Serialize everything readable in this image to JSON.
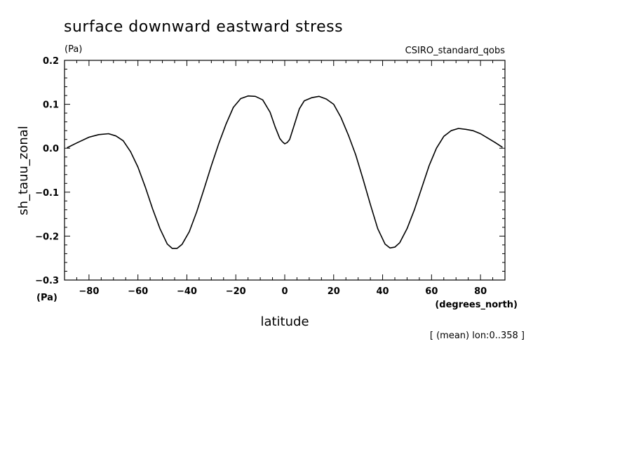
{
  "chart_data": {
    "type": "line",
    "title": "surface downward eastward stress",
    "units_top": "(Pa)",
    "model_label": "CSIRO_standard_qobs",
    "ylabel": "sh_tauu_zonal",
    "y_units": "(Pa)",
    "xlabel": "latitude",
    "x_units": "(degrees_north)",
    "footnote": "[ (mean) lon:0..358 ]",
    "xlim": [
      -90,
      90
    ],
    "ylim": [
      -0.3,
      0.2
    ],
    "x_ticks": [
      -80,
      -60,
      -40,
      -20,
      0,
      20,
      40,
      60,
      80
    ],
    "x_tick_labels": [
      "−80",
      "−60",
      "−40",
      "−20",
      "0",
      "20",
      "40",
      "60",
      "80"
    ],
    "y_ticks": [
      -0.3,
      -0.2,
      -0.1,
      0.0,
      0.1,
      0.2
    ],
    "y_tick_labels": [
      "−0.3",
      "−0.2",
      "−0.1",
      "0.0",
      "0.1",
      "0.2"
    ],
    "grid": false,
    "series": [
      {
        "color": "#000000",
        "x": [
          -89,
          -85,
          -80,
          -76,
          -72,
          -69,
          -66,
          -63,
          -60,
          -57,
          -54,
          -51,
          -48,
          -46,
          -44,
          -42,
          -39,
          -36,
          -33,
          -30,
          -27,
          -24,
          -21,
          -18,
          -15,
          -12,
          -9,
          -6,
          -4,
          -2,
          -1,
          0,
          1,
          2,
          4,
          6,
          8,
          11,
          14,
          17,
          20,
          23,
          26,
          29,
          32,
          35,
          38,
          41,
          43,
          45,
          47,
          50,
          53,
          56,
          59,
          62,
          65,
          68,
          71,
          74,
          77,
          80,
          83,
          86,
          89
        ],
        "y": [
          0.001,
          0.012,
          0.025,
          0.031,
          0.033,
          0.028,
          0.017,
          -0.008,
          -0.043,
          -0.088,
          -0.138,
          -0.183,
          -0.218,
          -0.228,
          -0.228,
          -0.219,
          -0.19,
          -0.145,
          -0.093,
          -0.04,
          0.01,
          0.055,
          0.093,
          0.113,
          0.119,
          0.118,
          0.11,
          0.082,
          0.05,
          0.022,
          0.015,
          0.01,
          0.013,
          0.02,
          0.055,
          0.09,
          0.108,
          0.115,
          0.118,
          0.112,
          0.1,
          0.07,
          0.03,
          -0.015,
          -0.07,
          -0.128,
          -0.183,
          -0.218,
          -0.227,
          -0.225,
          -0.215,
          -0.183,
          -0.14,
          -0.09,
          -0.04,
          0.0,
          0.027,
          0.04,
          0.045,
          0.043,
          0.04,
          0.033,
          0.023,
          0.013,
          0.002
        ]
      }
    ]
  }
}
